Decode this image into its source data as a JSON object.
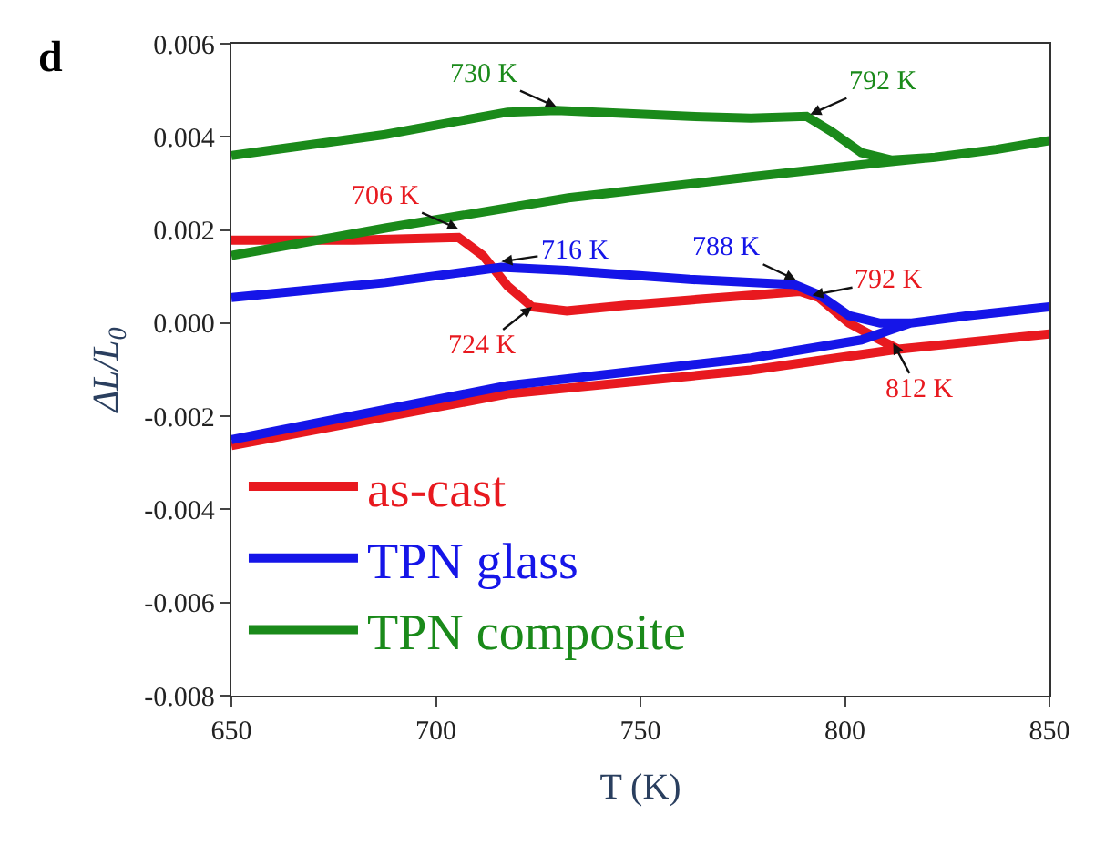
{
  "chart_data": {
    "type": "line",
    "xlabel": "T (K)",
    "ylabel": "ΔL/L$_{0}$",
    "xlim": [
      650,
      850
    ],
    "xticks": [
      650,
      700,
      750,
      800,
      850
    ],
    "ylim": [
      -0.008,
      0.006
    ],
    "yticks": [
      -0.008,
      -0.006,
      -0.004,
      -0.002,
      {
        "value": 0,
        "label": "0.000"
      },
      0.002,
      0.004,
      0.006
    ],
    "legend": "bottom left",
    "marker": "none",
    "line_style": "solid",
    "series": [
      {
        "name": "as-cast",
        "color": "#e8191f",
        "x": [
          650,
          717.5,
          777,
          813,
          850,
          813,
          808.6,
          801,
          793.6,
          789,
          769.7,
          747,
          732,
          723.5,
          717.5,
          711.5,
          705.5,
          680,
          650
        ],
        "values": [
          -0.00263,
          -0.00152,
          -0.00101,
          -0.00056,
          -0.00023,
          -0.00056,
          -0.00036,
          0.0,
          0.00055,
          0.00068,
          0.00055,
          0.00039,
          0.00026,
          0.00035,
          0.0008,
          0.00145,
          0.00184,
          0.00178,
          0.00178
        ]
      },
      {
        "name": "TPN glass",
        "color": "#1515e8",
        "x": [
          650,
          717.5,
          777,
          804,
          816,
          830,
          850,
          830,
          816,
          808.6,
          801,
          793.6,
          787.6,
          762,
          732,
          716,
          687.6,
          650
        ],
        "values": [
          -0.0025,
          -0.00134,
          -0.00075,
          -0.00036,
          0.0,
          0.00016,
          0.00035,
          0.00016,
          0.0,
          0.0,
          0.00016,
          0.00061,
          0.00083,
          0.00094,
          0.00113,
          0.0012,
          0.00087,
          0.00055
        ]
      },
      {
        "name": "TPN composite",
        "color": "#1a8a1a",
        "x": [
          650,
          687.6,
          732.4,
          777,
          807,
          822,
          837,
          850,
          837,
          822,
          811.5,
          804,
          796.6,
          790.6,
          777,
          762,
          747,
          729.5,
          717.5,
          687.6,
          650
        ],
        "values": [
          0.00145,
          0.00204,
          0.00269,
          0.00314,
          0.00343,
          0.00356,
          0.00373,
          0.00392,
          0.00373,
          0.00356,
          0.0035,
          0.00366,
          0.00412,
          0.00444,
          0.0044,
          0.00444,
          0.0045,
          0.00457,
          0.00453,
          0.00405,
          0.0036
        ]
      }
    ],
    "annotations": [
      "d",
      {
        "text": "730 K",
        "x": 729.5,
        "y": 0.00464
      },
      {
        "text": "792 K",
        "x": 791.5,
        "y": 0.00448
      },
      {
        "text": "706 K",
        "x": 705.5,
        "y": 0.00202
      },
      {
        "text": "716 K",
        "x": 716,
        "y": 0.00132
      },
      {
        "text": "788 K",
        "x": 788,
        "y": 0.00093
      },
      {
        "text": "792 K",
        "x": 792,
        "y": 0.0006
      },
      {
        "text": "724 K",
        "x": 723.5,
        "y": 0.00035
      },
      {
        "text": "812 K",
        "x": 811.8,
        "y": -0.00043
      }
    ]
  }
}
